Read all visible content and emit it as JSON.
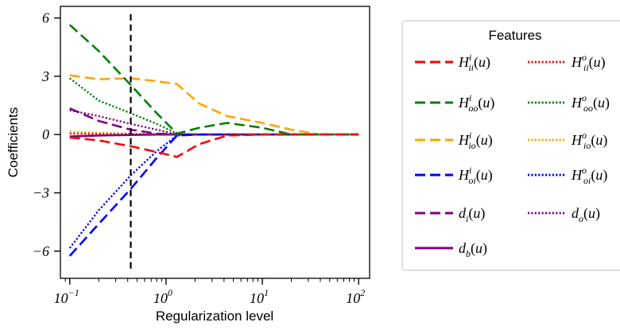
{
  "chart_data": {
    "type": "line",
    "xscale": "log",
    "xlabel": "Regularization level",
    "ylabel": "Coefficients",
    "xlim": [
      0.08,
      130
    ],
    "ylim": [
      -7.4,
      6.6
    ],
    "xticks": [
      0.1,
      1,
      10,
      100
    ],
    "xtick_labels": [
      {
        "base": "10",
        "exp": "−1"
      },
      {
        "base": "10",
        "exp": "0"
      },
      {
        "base": "10",
        "exp": "1"
      },
      {
        "base": "10",
        "exp": "2"
      }
    ],
    "yticks": [
      -6,
      -3,
      0,
      3,
      6
    ],
    "ytick_labels": [
      "−6",
      "−3",
      "0",
      "3",
      "6"
    ],
    "vline": {
      "x": 0.43,
      "style": "dashed",
      "color": "#000000"
    },
    "x": [
      0.1,
      0.2,
      0.43,
      0.8,
      1.3,
      2.2,
      4.3,
      10,
      20,
      40,
      100
    ],
    "legend": {
      "title": "Features",
      "position": "right",
      "columns": 2
    },
    "series": [
      {
        "name": "H_ii^i(u)",
        "color": "#ff0000",
        "dash": "long",
        "y": [
          -0.15,
          -0.3,
          -0.6,
          -0.9,
          -1.15,
          -0.5,
          -0.05,
          0.0,
          0.0,
          0.0,
          0.0
        ]
      },
      {
        "name": "H_oo^i(u)",
        "color": "#008000",
        "dash": "long",
        "y": [
          5.65,
          4.3,
          2.55,
          1.1,
          0.05,
          0.35,
          0.6,
          0.35,
          0.0,
          0.0,
          0.0
        ]
      },
      {
        "name": "H_io^i(u)",
        "color": "#ffa500",
        "dash": "long",
        "y": [
          3.05,
          2.85,
          2.9,
          2.75,
          2.6,
          1.6,
          0.95,
          0.6,
          0.25,
          0.0,
          0.0
        ]
      },
      {
        "name": "H_oi^i(u)",
        "color": "#0000ff",
        "dash": "long",
        "y": [
          -6.25,
          -4.6,
          -2.8,
          -1.2,
          -0.05,
          0.0,
          0.0,
          0.0,
          0.0,
          0.0,
          0.0
        ]
      },
      {
        "name": "d_i(u)",
        "color": "#800080",
        "dash": "long",
        "y": [
          1.35,
          0.7,
          0.25,
          0.05,
          0.0,
          0.0,
          0.0,
          0.0,
          0.0,
          0.0,
          0.0
        ]
      },
      {
        "name": "d_b(u)",
        "color": "#800080",
        "dash": "solid",
        "y": [
          -0.1,
          -0.05,
          -0.02,
          0.0,
          0.0,
          0.0,
          0.0,
          0.0,
          0.0,
          0.0,
          0.0
        ]
      },
      {
        "name": "H_ii^o(u)",
        "color": "#ff0000",
        "dash": "dot",
        "y": [
          0.05,
          0.03,
          0.02,
          0.01,
          0.0,
          0.0,
          0.0,
          0.0,
          0.0,
          0.0,
          0.0
        ]
      },
      {
        "name": "H_oo^o(u)",
        "color": "#008000",
        "dash": "dot",
        "y": [
          2.9,
          1.75,
          1.1,
          0.55,
          0.05,
          0.0,
          0.0,
          0.0,
          0.0,
          0.0,
          0.0
        ]
      },
      {
        "name": "H_io^o(u)",
        "color": "#ffa500",
        "dash": "dot",
        "y": [
          0.15,
          0.1,
          0.05,
          0.02,
          0.0,
          0.0,
          0.0,
          0.0,
          0.0,
          0.0,
          0.0
        ]
      },
      {
        "name": "H_oi^o(u)",
        "color": "#0000ff",
        "dash": "dot",
        "y": [
          -5.85,
          -3.9,
          -2.1,
          -0.85,
          -0.05,
          0.0,
          0.0,
          0.0,
          0.0,
          0.0,
          0.0
        ]
      },
      {
        "name": "d_o(u)",
        "color": "#800080",
        "dash": "dot",
        "y": [
          1.25,
          0.95,
          0.55,
          0.25,
          0.0,
          0.0,
          0.0,
          0.0,
          0.0,
          0.0,
          0.0
        ]
      }
    ],
    "legend_entries": [
      {
        "series": 0,
        "base": "H",
        "sup": "i",
        "sub": "ii",
        "arg": "(u)"
      },
      {
        "series": 6,
        "base": "H",
        "sup": "o",
        "sub": "ii",
        "arg": "(u)"
      },
      {
        "series": 1,
        "base": "H",
        "sup": "i",
        "sub": "oo",
        "arg": "(u)"
      },
      {
        "series": 7,
        "base": "H",
        "sup": "o",
        "sub": "oo",
        "arg": "(u)"
      },
      {
        "series": 2,
        "base": "H",
        "sup": "i",
        "sub": "io",
        "arg": "(u)"
      },
      {
        "series": 8,
        "base": "H",
        "sup": "o",
        "sub": "io",
        "arg": "(u)"
      },
      {
        "series": 3,
        "base": "H",
        "sup": "i",
        "sub": "oi",
        "arg": "(u)"
      },
      {
        "series": 9,
        "base": "H",
        "sup": "o",
        "sub": "oi",
        "arg": "(u)"
      },
      {
        "series": 4,
        "base": "d",
        "sup": "",
        "sub": "i",
        "arg": "(u)"
      },
      {
        "series": 10,
        "base": "d",
        "sup": "",
        "sub": "o",
        "arg": "(u)"
      },
      {
        "series": 5,
        "base": "d",
        "sup": "",
        "sub": "b",
        "arg": "(u)"
      }
    ]
  }
}
